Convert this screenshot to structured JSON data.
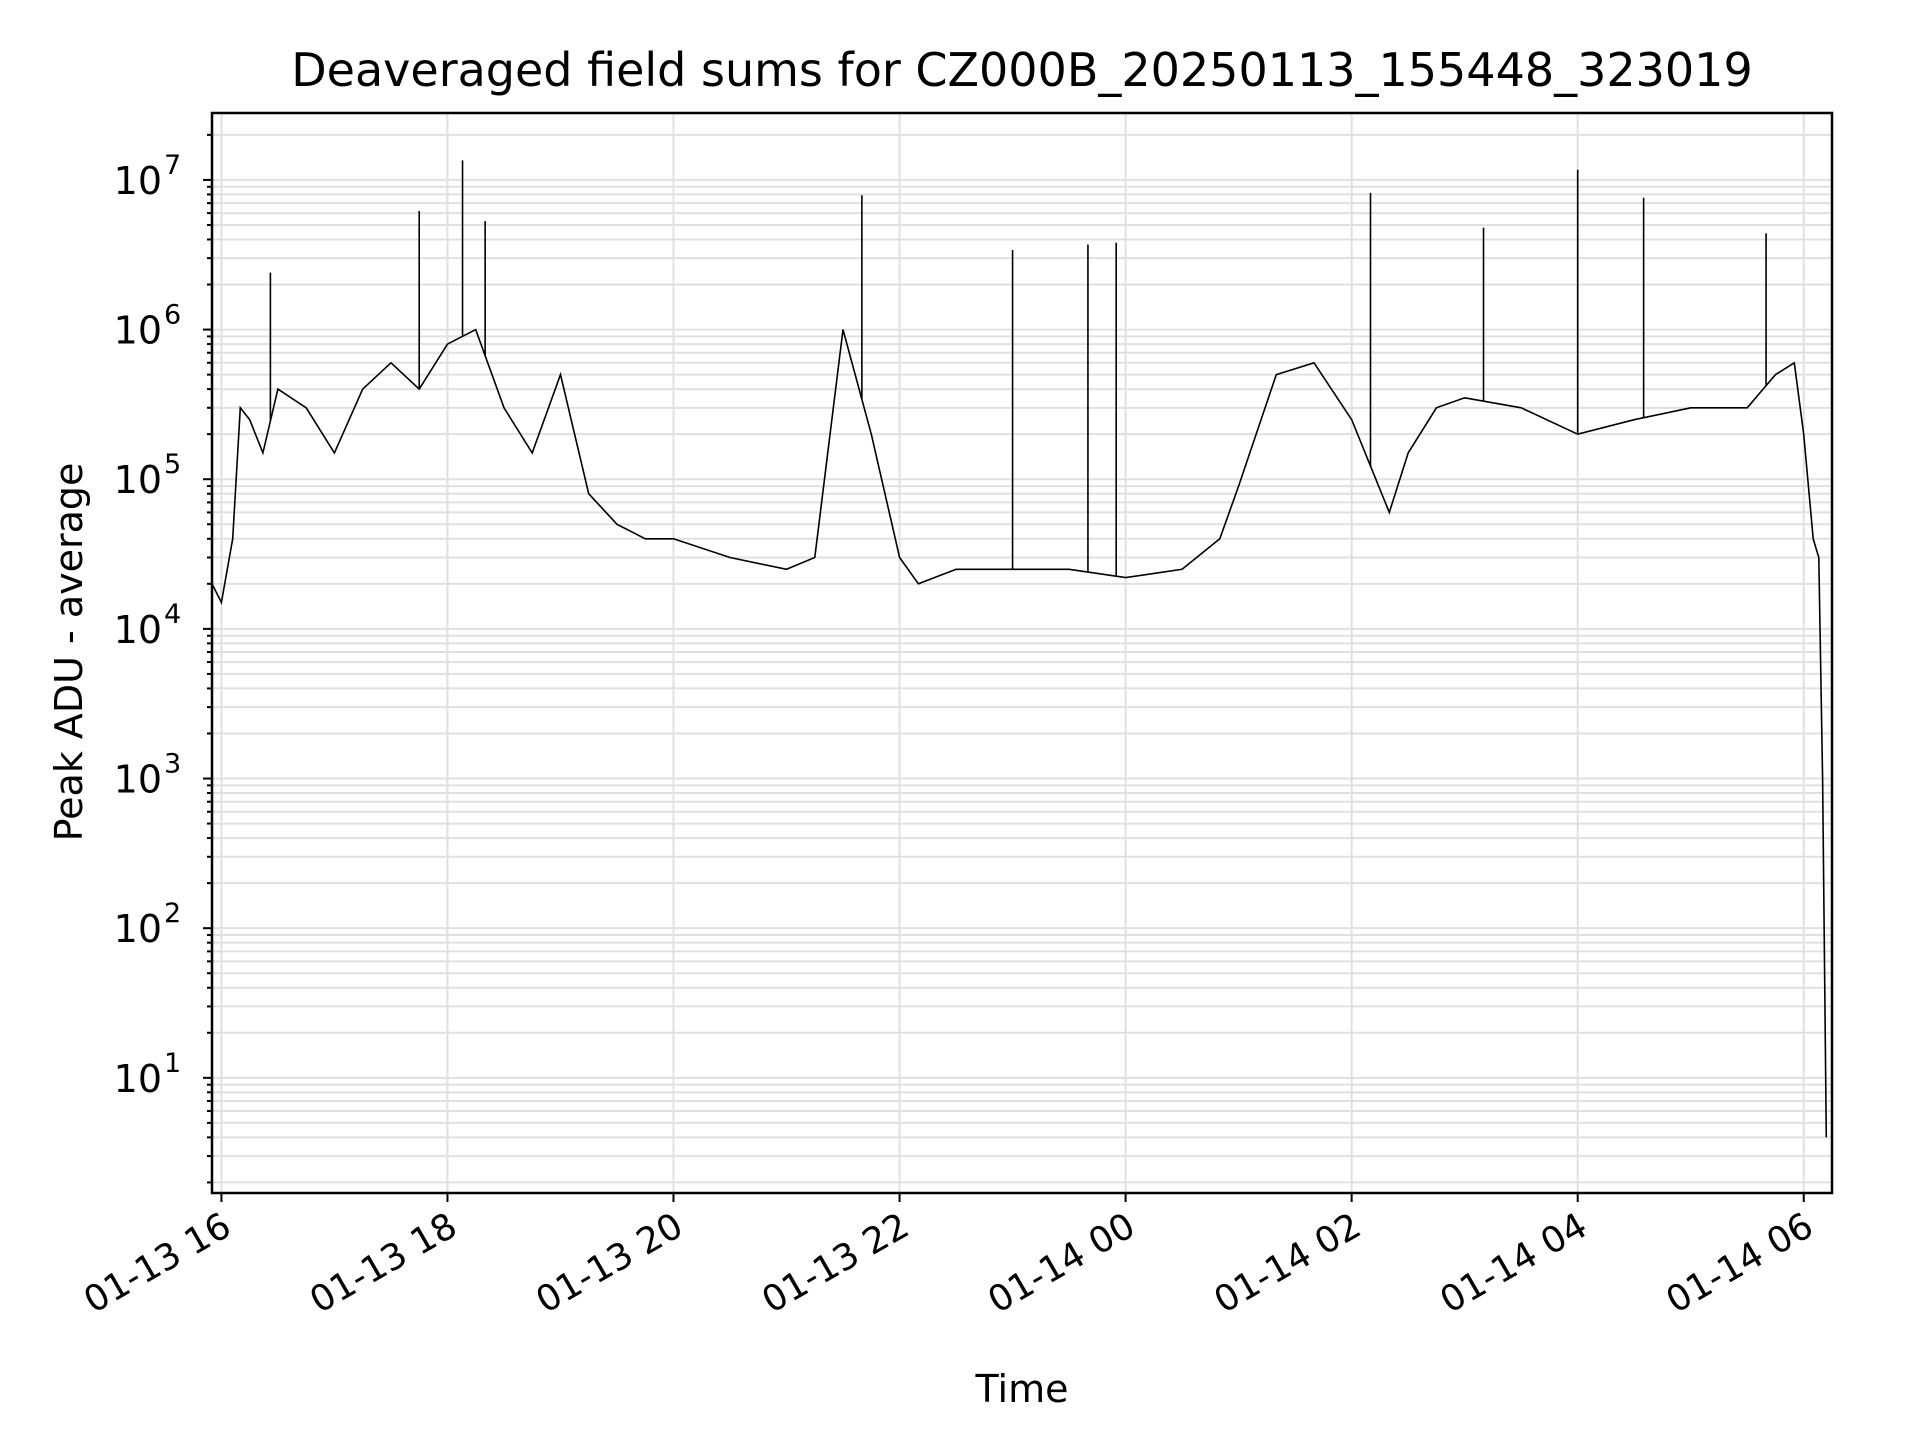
{
  "chart_data": {
    "type": "line",
    "title": "Deaveraged field sums for CZ000B_20250113_155448_323019",
    "xlabel": "Time",
    "ylabel": "Peak ADU - average",
    "yscale": "log",
    "ylim": [
      1.7,
      28000000
    ],
    "xlim": [
      "2025-01-13 15:55",
      "2025-01-14 06:15"
    ],
    "x_ticks": [
      {
        "x": "2025-01-13 16:00",
        "label": "01-13 16"
      },
      {
        "x": "2025-01-13 18:00",
        "label": "01-13 18"
      },
      {
        "x": "2025-01-13 20:00",
        "label": "01-13 20"
      },
      {
        "x": "2025-01-13 22:00",
        "label": "01-13 22"
      },
      {
        "x": "2025-01-14 00:00",
        "label": "01-14 00"
      },
      {
        "x": "2025-01-14 02:00",
        "label": "01-14 02"
      },
      {
        "x": "2025-01-14 04:00",
        "label": "01-14 04"
      },
      {
        "x": "2025-01-14 06:00",
        "label": "01-14 06"
      }
    ],
    "y_ticks": [
      {
        "value": 10,
        "base": "10",
        "exp": "1"
      },
      {
        "value": 100,
        "base": "10",
        "exp": "2"
      },
      {
        "value": 1000,
        "base": "10",
        "exp": "3"
      },
      {
        "value": 10000,
        "base": "10",
        "exp": "4"
      },
      {
        "value": 100000,
        "base": "10",
        "exp": "5"
      },
      {
        "value": 1000000,
        "base": "10",
        "exp": "6"
      },
      {
        "value": 10000000,
        "base": "10",
        "exp": "7"
      }
    ],
    "grid": true,
    "line_color": "#000000",
    "series": [
      {
        "x": [
          "2025-01-13 15:55",
          "2025-01-13 16:00",
          "2025-01-13 16:06",
          "2025-01-13 16:10",
          "2025-01-13 16:15",
          "2025-01-13 16:22",
          "2025-01-13 16:30",
          "2025-01-13 16:45",
          "2025-01-13 17:00",
          "2025-01-13 17:15",
          "2025-01-13 17:30",
          "2025-01-13 17:45",
          "2025-01-13 18:00",
          "2025-01-13 18:15",
          "2025-01-13 18:30",
          "2025-01-13 18:45",
          "2025-01-13 19:00",
          "2025-01-13 19:15",
          "2025-01-13 19:30",
          "2025-01-13 19:45",
          "2025-01-13 20:00",
          "2025-01-13 20:30",
          "2025-01-13 21:00",
          "2025-01-13 21:15",
          "2025-01-13 21:30",
          "2025-01-13 21:45",
          "2025-01-13 22:00",
          "2025-01-13 22:10",
          "2025-01-13 22:30",
          "2025-01-13 23:00",
          "2025-01-13 23:30",
          "2025-01-14 00:00",
          "2025-01-14 00:30",
          "2025-01-14 00:50",
          "2025-01-14 01:00",
          "2025-01-14 01:20",
          "2025-01-14 01:40",
          "2025-01-14 02:00",
          "2025-01-14 02:20",
          "2025-01-14 02:30",
          "2025-01-14 02:45",
          "2025-01-14 03:00",
          "2025-01-14 03:30",
          "2025-01-14 04:00",
          "2025-01-14 04:30",
          "2025-01-14 05:00",
          "2025-01-14 05:30",
          "2025-01-14 05:45",
          "2025-01-14 05:55",
          "2025-01-14 06:00",
          "2025-01-14 06:05",
          "2025-01-14 06:08",
          "2025-01-14 06:10",
          "2025-01-14 06:12"
        ],
        "y": [
          20000,
          15000,
          40000,
          300000,
          250000,
          150000,
          400000,
          300000,
          150000,
          400000,
          600000,
          400000,
          800000,
          1000000,
          300000,
          150000,
          500000,
          80000,
          50000,
          40000,
          40000,
          30000,
          25000,
          30000,
          1000000,
          200000,
          30000,
          20000,
          25000,
          25000,
          25000,
          22000,
          25000,
          40000,
          90000,
          500000,
          600000,
          250000,
          60000,
          150000,
          300000,
          350000,
          300000,
          200000,
          250000,
          300000,
          300000,
          500000,
          600000,
          200000,
          40000,
          30000,
          1000,
          4
        ]
      }
    ],
    "spikes": [
      {
        "x": "2025-01-13 16:26",
        "y": 2400000
      },
      {
        "x": "2025-01-13 17:45",
        "y": 6200000
      },
      {
        "x": "2025-01-13 18:08",
        "y": 13500000
      },
      {
        "x": "2025-01-13 18:20",
        "y": 5300000
      },
      {
        "x": "2025-01-13 21:40",
        "y": 7900000
      },
      {
        "x": "2025-01-13 23:00",
        "y": 3400000
      },
      {
        "x": "2025-01-13 23:40",
        "y": 3700000
      },
      {
        "x": "2025-01-13 23:55",
        "y": 3800000
      },
      {
        "x": "2025-01-14 02:10",
        "y": 8200000
      },
      {
        "x": "2025-01-14 03:10",
        "y": 4800000
      },
      {
        "x": "2025-01-14 04:00",
        "y": 11700000
      },
      {
        "x": "2025-01-14 04:35",
        "y": 7600000
      },
      {
        "x": "2025-01-14 05:40",
        "y": 4400000
      }
    ]
  }
}
